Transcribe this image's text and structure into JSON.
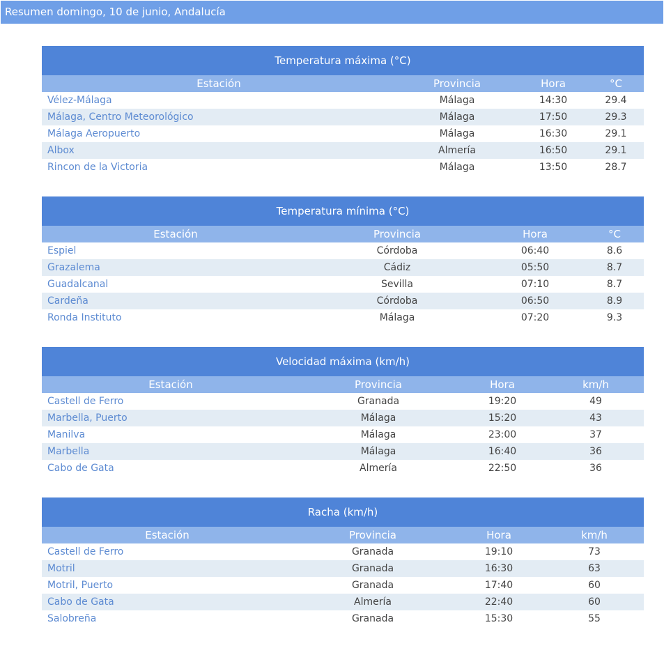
{
  "header": {
    "title": "Resumen domingo, 10 de junio, Andalucía"
  },
  "tables": [
    {
      "title": "Temperatura máxima (°C)",
      "columns": [
        "Estación",
        "Provincia",
        "Hora",
        "°C"
      ],
      "rows": [
        [
          "Vélez-Málaga",
          "Málaga",
          "14:30",
          "29.4"
        ],
        [
          "Málaga, Centro Meteorológico",
          "Málaga",
          "17:50",
          "29.3"
        ],
        [
          "Málaga Aeropuerto",
          "Málaga",
          "16:30",
          "29.1"
        ],
        [
          "Albox",
          "Almería",
          "16:50",
          "29.1"
        ],
        [
          "Rincon de la Victoria",
          "Málaga",
          "13:50",
          "28.7"
        ]
      ]
    },
    {
      "title": "Temperatura mínima (°C)",
      "columns": [
        "Estación",
        "Provincia",
        "Hora",
        "°C"
      ],
      "rows": [
        [
          "Espiel",
          "Córdoba",
          "06:40",
          "8.6"
        ],
        [
          "Grazalema",
          "Cádiz",
          "05:50",
          "8.7"
        ],
        [
          "Guadalcanal",
          "Sevilla",
          "07:10",
          "8.7"
        ],
        [
          "Cardeña",
          "Córdoba",
          "06:50",
          "8.9"
        ],
        [
          "Ronda Instituto",
          "Málaga",
          "07:20",
          "9.3"
        ]
      ]
    },
    {
      "title": "Velocidad máxima (km/h)",
      "columns": [
        "Estación",
        "Provincia",
        "Hora",
        "km/h"
      ],
      "rows": [
        [
          "Castell de Ferro",
          "Granada",
          "19:20",
          "49"
        ],
        [
          "Marbella, Puerto",
          "Málaga",
          "15:20",
          "43"
        ],
        [
          "Manilva",
          "Málaga",
          "23:00",
          "37"
        ],
        [
          "Marbella",
          "Málaga",
          "16:40",
          "36"
        ],
        [
          "Cabo de Gata",
          "Almería",
          "22:50",
          "36"
        ]
      ]
    },
    {
      "title": "Racha (km/h)",
      "columns": [
        "Estación",
        "Provincia",
        "Hora",
        "km/h"
      ],
      "rows": [
        [
          "Castell de Ferro",
          "Granada",
          "19:10",
          "73"
        ],
        [
          "Motril",
          "Granada",
          "16:30",
          "63"
        ],
        [
          "Motril, Puerto",
          "Granada",
          "17:40",
          "60"
        ],
        [
          "Cabo de Gata",
          "Almería",
          "22:40",
          "60"
        ],
        [
          "Salobreña",
          "Granada",
          "15:30",
          "55"
        ]
      ]
    }
  ]
}
